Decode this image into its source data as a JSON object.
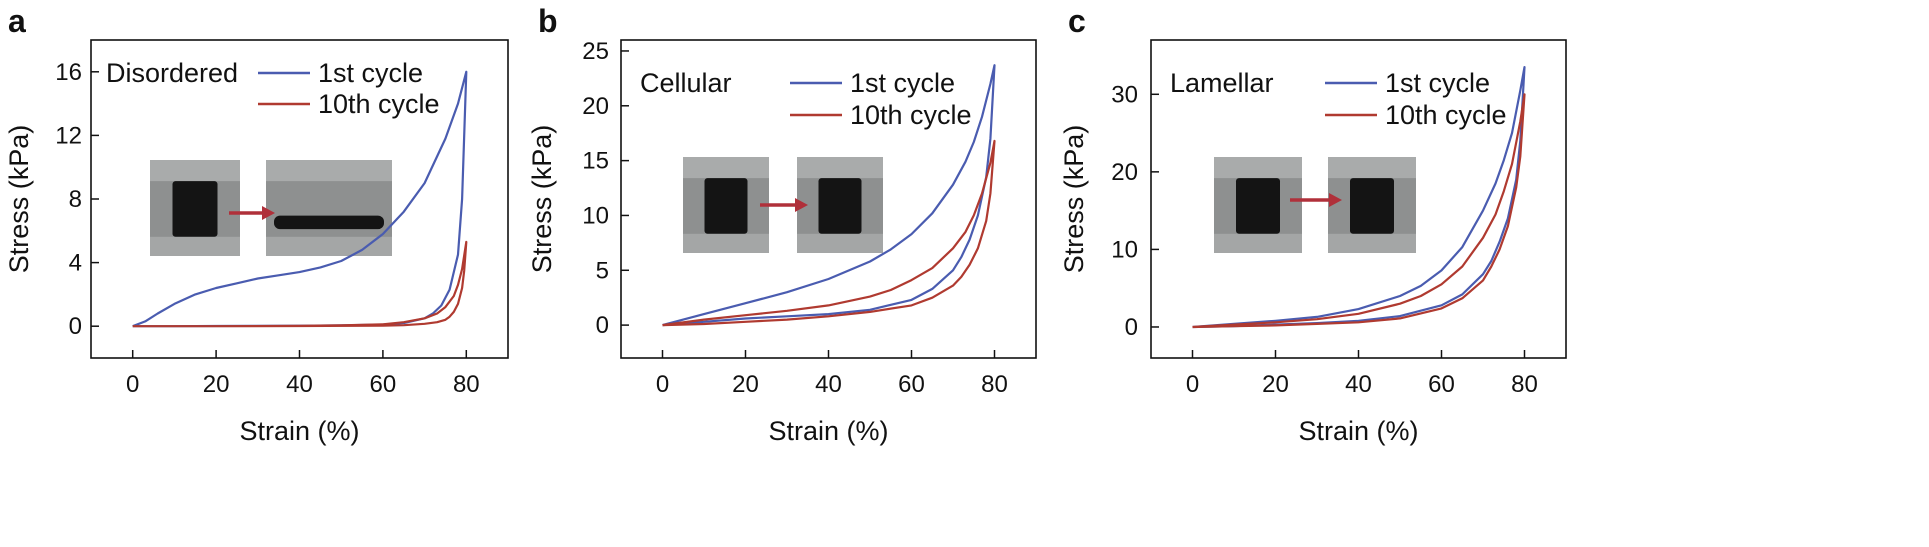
{
  "colors": {
    "cycle1": "#4a5cb0",
    "cycle10": "#b03a30",
    "arrow": "#b0303a",
    "axis": "#111111"
  },
  "chart_data": [
    {
      "type": "line",
      "panel": "a",
      "label": "Disordered",
      "xlabel": "Strain (%)",
      "ylabel": "Stress (kPa)",
      "xlim": [
        -10,
        90
      ],
      "ylim": [
        -2,
        18
      ],
      "xticks": [
        0,
        20,
        40,
        60,
        80
      ],
      "yticks": [
        0,
        4,
        8,
        12,
        16
      ],
      "legend_position": "top-right",
      "series": [
        {
          "name": "1st cycle",
          "x": [
            0,
            3,
            6,
            10,
            15,
            20,
            25,
            30,
            35,
            40,
            45,
            50,
            55,
            60,
            65,
            70,
            75,
            78,
            80,
            79,
            78,
            76,
            74,
            72,
            70,
            65,
            60,
            50,
            40,
            30,
            20,
            10,
            0
          ],
          "y": [
            0,
            0.3,
            0.8,
            1.4,
            2.0,
            2.4,
            2.7,
            3.0,
            3.2,
            3.4,
            3.7,
            4.1,
            4.8,
            5.8,
            7.2,
            9.0,
            11.8,
            14.0,
            16.0,
            8.0,
            4.5,
            2.3,
            1.3,
            0.8,
            0.5,
            0.2,
            0.1,
            0.05,
            0.03,
            0.02,
            0.01,
            0,
            0
          ]
        },
        {
          "name": "10th cycle",
          "x": [
            0,
            20,
            40,
            50,
            60,
            65,
            70,
            73,
            75,
            77,
            78,
            79,
            80,
            79.5,
            79,
            78,
            77,
            76,
            75,
            73,
            70,
            65,
            60,
            40,
            20,
            0
          ],
          "y": [
            0,
            0,
            0.02,
            0.05,
            0.12,
            0.25,
            0.5,
            0.8,
            1.2,
            1.9,
            2.6,
            3.6,
            5.3,
            3.5,
            2.4,
            1.4,
            0.9,
            0.6,
            0.4,
            0.25,
            0.15,
            0.06,
            0.03,
            0.01,
            0,
            0
          ]
        }
      ],
      "inset_photo_count": 2
    },
    {
      "type": "line",
      "panel": "b",
      "label": "Cellular",
      "xlabel": "Strain (%)",
      "ylabel": "Stress (kPa)",
      "xlim": [
        -10,
        90
      ],
      "ylim": [
        -3,
        26
      ],
      "xticks": [
        0,
        20,
        40,
        60,
        80
      ],
      "yticks": [
        0,
        5,
        10,
        15,
        20,
        25
      ],
      "legend_position": "top-right",
      "series": [
        {
          "name": "1st cycle",
          "x": [
            0,
            10,
            20,
            30,
            40,
            50,
            55,
            60,
            65,
            70,
            73,
            75,
            77,
            79,
            80,
            79,
            78,
            76,
            74,
            72,
            70,
            65,
            60,
            50,
            40,
            30,
            20,
            10,
            0
          ],
          "y": [
            0,
            1.0,
            2.0,
            3.0,
            4.2,
            5.8,
            6.9,
            8.3,
            10.2,
            12.8,
            14.9,
            16.7,
            19.0,
            22.0,
            23.7,
            17.0,
            13.5,
            10.0,
            7.8,
            6.2,
            5.0,
            3.3,
            2.3,
            1.4,
            1.0,
            0.8,
            0.6,
            0.3,
            0
          ]
        },
        {
          "name": "10th cycle",
          "x": [
            0,
            10,
            20,
            30,
            40,
            50,
            55,
            60,
            65,
            70,
            73,
            75,
            77,
            79,
            80,
            79,
            78,
            76,
            74,
            72,
            70,
            65,
            60,
            50,
            40,
            30,
            20,
            10,
            0
          ],
          "y": [
            0,
            0.5,
            0.9,
            1.3,
            1.8,
            2.6,
            3.2,
            4.1,
            5.2,
            7.0,
            8.5,
            10.0,
            12.0,
            14.8,
            16.8,
            12.0,
            9.5,
            7.0,
            5.5,
            4.4,
            3.6,
            2.5,
            1.8,
            1.2,
            0.8,
            0.5,
            0.3,
            0.1,
            0
          ]
        }
      ],
      "inset_photo_count": 2
    },
    {
      "type": "line",
      "panel": "c",
      "label": "Lamellar",
      "xlabel": "Strain (%)",
      "ylabel": "Stress (kPa)",
      "xlim": [
        -10,
        90
      ],
      "ylim": [
        -4,
        37
      ],
      "xticks": [
        0,
        20,
        40,
        60,
        80
      ],
      "yticks": [
        0,
        10,
        20,
        30
      ],
      "legend_position": "top-right",
      "series": [
        {
          "name": "1st cycle",
          "x": [
            0,
            10,
            20,
            30,
            40,
            50,
            55,
            60,
            65,
            70,
            73,
            75,
            77,
            79,
            80,
            79,
            78,
            76,
            74,
            72,
            70,
            65,
            60,
            50,
            40,
            30,
            20,
            10,
            0
          ],
          "y": [
            0,
            0.4,
            0.8,
            1.3,
            2.3,
            4.0,
            5.3,
            7.3,
            10.3,
            15.0,
            18.5,
            21.5,
            25.0,
            30.5,
            33.5,
            24.0,
            19.0,
            14.0,
            11.0,
            8.5,
            6.8,
            4.2,
            2.8,
            1.4,
            0.8,
            0.5,
            0.3,
            0.1,
            0
          ]
        },
        {
          "name": "10th cycle",
          "x": [
            0,
            10,
            20,
            30,
            40,
            50,
            55,
            60,
            65,
            70,
            73,
            75,
            77,
            79,
            80,
            79,
            78,
            76,
            74,
            72,
            70,
            65,
            60,
            50,
            40,
            30,
            20,
            10,
            0
          ],
          "y": [
            0,
            0.3,
            0.6,
            1.0,
            1.7,
            3.0,
            4.0,
            5.5,
            7.8,
            11.5,
            14.5,
            17.5,
            21.0,
            26.5,
            30.0,
            22.0,
            18.0,
            13.0,
            10.0,
            7.8,
            6.0,
            3.7,
            2.4,
            1.1,
            0.6,
            0.4,
            0.2,
            0.1,
            0
          ]
        }
      ],
      "inset_photo_count": 2
    }
  ]
}
